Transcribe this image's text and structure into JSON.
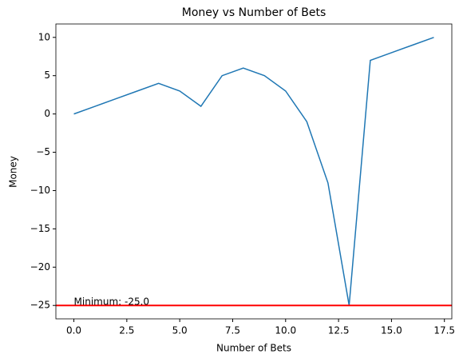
{
  "chart_data": {
    "type": "line",
    "title": "Money vs Number of Bets",
    "x_label": "Number of Bets",
    "y_label": "Money",
    "x": [
      0,
      1,
      2,
      3,
      4,
      5,
      6,
      7,
      8,
      9,
      10,
      11,
      12,
      13,
      14,
      15,
      16,
      17
    ],
    "series": [
      {
        "name": "Money",
        "color": "#1f77b4",
        "values": [
          0,
          1,
          2,
          3,
          4,
          3,
          1,
          5,
          6,
          5,
          3,
          -1,
          -9,
          -25,
          7,
          8,
          9,
          10
        ]
      }
    ],
    "hline": {
      "value": -25,
      "color": "#ff0000"
    },
    "annotation": "Minimum: -25.0",
    "xlim": [
      -0.85,
      17.85
    ],
    "ylim": [
      -26.75,
      11.75
    ],
    "xticks": [
      {
        "value": 0,
        "label": "0.0"
      },
      {
        "value": 2.5,
        "label": "2.5"
      },
      {
        "value": 5,
        "label": "5.0"
      },
      {
        "value": 7.5,
        "label": "7.5"
      },
      {
        "value": 10,
        "label": "10.0"
      },
      {
        "value": 12.5,
        "label": "12.5"
      },
      {
        "value": 15,
        "label": "15.0"
      },
      {
        "value": 17.5,
        "label": "17.5"
      }
    ],
    "yticks": [
      {
        "value": -25,
        "label": "−25"
      },
      {
        "value": -20,
        "label": "−20"
      },
      {
        "value": -15,
        "label": "−15"
      },
      {
        "value": -10,
        "label": "−10"
      },
      {
        "value": -5,
        "label": "−5"
      },
      0,
      5,
      10
    ]
  }
}
